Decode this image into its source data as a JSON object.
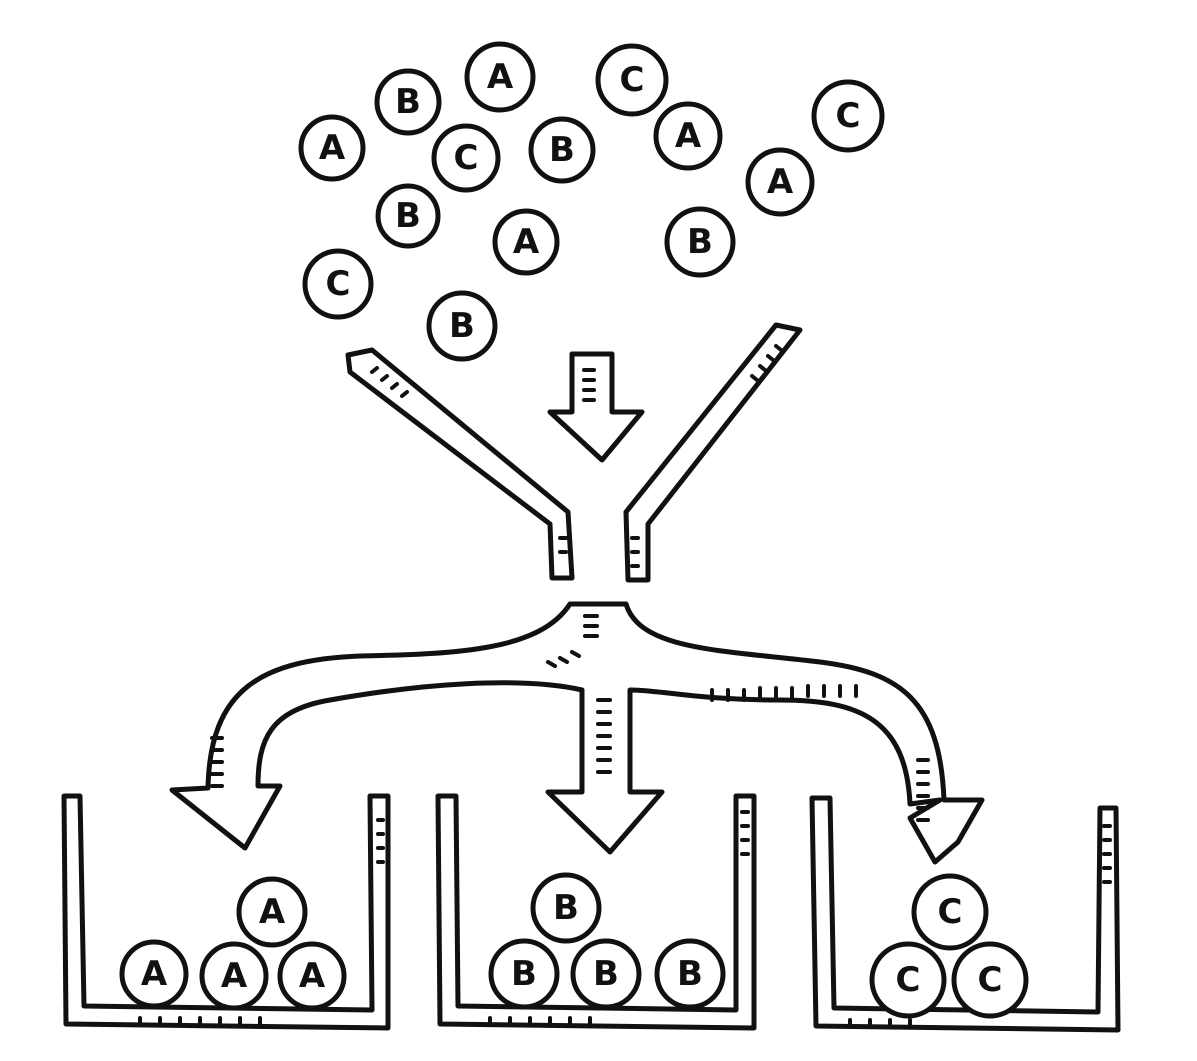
{
  "scattered_items": [
    {
      "label": "A"
    },
    {
      "label": "B"
    },
    {
      "label": "A"
    },
    {
      "label": "C"
    },
    {
      "label": "A"
    },
    {
      "label": "C"
    },
    {
      "label": "B"
    },
    {
      "label": "C"
    },
    {
      "label": "B"
    },
    {
      "label": "A"
    },
    {
      "label": "B"
    },
    {
      "label": "A"
    },
    {
      "label": "C"
    },
    {
      "label": "B"
    }
  ],
  "bins": [
    {
      "label": "A",
      "items": [
        "A",
        "A",
        "A",
        "A"
      ]
    },
    {
      "label": "B",
      "items": [
        "B",
        "B",
        "B",
        "B"
      ]
    },
    {
      "label": "C",
      "items": [
        "C",
        "C",
        "C"
      ]
    }
  ],
  "colors": {
    "ink": "#111111",
    "paper": "#ffffff"
  }
}
